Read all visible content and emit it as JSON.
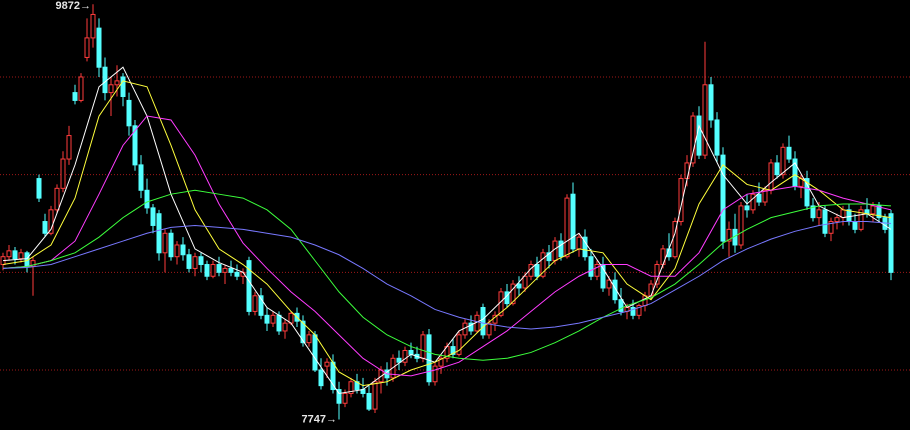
{
  "chart_data": {
    "type": "candlestick",
    "ylim": [
      7693,
      9894
    ],
    "yticks": [
      8000,
      8500,
      9000,
      9500
    ],
    "grid": true,
    "grid_color": "#a01818",
    "up_color": "#ff3c3c",
    "down_color": "#54ffff",
    "open": [
      8540,
      8580,
      8610,
      8570,
      8600,
      8530,
      8980,
      8760,
      8700,
      8820,
      8930,
      9080,
      9420,
      9380,
      9600,
      9700,
      9750,
      9550,
      9420,
      9460,
      9500,
      9380,
      9250,
      9050,
      8920,
      8830,
      8800,
      8600,
      8700,
      8580,
      8640,
      8590,
      8520,
      8580,
      8540,
      8480,
      8540,
      8500,
      8520,
      8500,
      8480,
      8560,
      8300,
      8380,
      8280,
      8240,
      8280,
      8200,
      8240,
      8290,
      8250,
      8140,
      8180,
      8000,
      8020,
      8040,
      7900,
      7830,
      7880,
      7940,
      7900,
      7880,
      7800,
      7940,
      8000,
      7960,
      8060,
      8040,
      8100,
      8080,
      8060,
      8180,
      7940,
      8020,
      8060,
      8120,
      8080,
      8180,
      8240,
      8200,
      8320,
      8180,
      8240,
      8280,
      8400,
      8340,
      8440,
      8420,
      8480,
      8540,
      8480,
      8600,
      8560,
      8660,
      8580,
      8900,
      8620,
      8680,
      8580,
      8480,
      8540,
      8420,
      8460,
      8360,
      8300,
      8320,
      8280,
      8330,
      8380,
      8440,
      8540,
      8620,
      8580,
      8760,
      8980,
      9060,
      9300,
      9100,
      9460,
      9280,
      9100,
      8660,
      8720,
      8640,
      8840,
      8820,
      8900,
      8860,
      8920,
      9060,
      9000,
      9140,
      9080,
      8940,
      8980,
      8840,
      8780,
      8820,
      8700,
      8760,
      8780,
      8820,
      8760,
      8720,
      8820,
      8800,
      8840,
      8780,
      8800
    ],
    "high": [
      8600,
      8640,
      8630,
      8620,
      8610,
      8580,
      9000,
      8800,
      8840,
      8950,
      9120,
      9250,
      9460,
      9520,
      9800,
      9872,
      9800,
      9600,
      9500,
      9560,
      9520,
      9420,
      9280,
      9100,
      8980,
      8850,
      8820,
      8720,
      8720,
      8660,
      8680,
      8620,
      8600,
      8600,
      8560,
      8560,
      8580,
      8540,
      8560,
      8540,
      8520,
      8580,
      8400,
      8420,
      8320,
      8300,
      8300,
      8260,
      8300,
      8320,
      8280,
      8200,
      8200,
      8060,
      8060,
      8080,
      7940,
      7900,
      7960,
      7980,
      7960,
      7920,
      7960,
      8020,
      8040,
      8080,
      8100,
      8120,
      8140,
      8120,
      8200,
      8210,
      8040,
      8080,
      8140,
      8160,
      8200,
      8260,
      8280,
      8300,
      8340,
      8260,
      8300,
      8420,
      8440,
      8460,
      8480,
      8500,
      8560,
      8580,
      8620,
      8640,
      8680,
      8700,
      8900,
      8960,
      8700,
      8720,
      8620,
      8560,
      8580,
      8480,
      8500,
      8420,
      8340,
      8360,
      8340,
      8400,
      8460,
      8560,
      8640,
      8700,
      8780,
      9000,
      9100,
      9320,
      9350,
      9680,
      9500,
      9320,
      9140,
      8760,
      8800,
      8860,
      8900,
      8920,
      8960,
      8940,
      9080,
      9100,
      9160,
      9200,
      9120,
      9000,
      9020,
      8880,
      8860,
      8840,
      8780,
      8800,
      8840,
      8850,
      8800,
      8840,
      8880,
      8860,
      8860,
      8800,
      8820
    ],
    "low": [
      8510,
      8560,
      8540,
      8550,
      8500,
      8380,
      8860,
      8680,
      8690,
      8800,
      8910,
      9050,
      9360,
      9370,
      9580,
      9650,
      9500,
      9380,
      9300,
      9400,
      9350,
      9200,
      9020,
      8880,
      8800,
      8700,
      8560,
      8500,
      8560,
      8540,
      8560,
      8500,
      8480,
      8500,
      8460,
      8470,
      8480,
      8440,
      8480,
      8460,
      8440,
      8280,
      8280,
      8260,
      8200,
      8220,
      8180,
      8160,
      8230,
      8220,
      8120,
      8120,
      7990,
      7900,
      7960,
      7880,
      7747,
      7810,
      7860,
      7880,
      7860,
      7790,
      7780,
      7880,
      7920,
      7940,
      8000,
      8020,
      8060,
      8040,
      8040,
      7920,
      7920,
      7980,
      8040,
      8060,
      8070,
      8160,
      8180,
      8190,
      8160,
      8160,
      8200,
      8270,
      8320,
      8330,
      8380,
      8400,
      8460,
      8460,
      8470,
      8520,
      8540,
      8560,
      8570,
      8600,
      8580,
      8560,
      8460,
      8460,
      8400,
      8380,
      8340,
      8280,
      8260,
      8260,
      8260,
      8300,
      8360,
      8420,
      8520,
      8560,
      8570,
      8740,
      8940,
      9040,
      9080,
      9080,
      9240,
      9060,
      8620,
      8580,
      8600,
      8620,
      8780,
      8800,
      8840,
      8840,
      8900,
      8980,
      8980,
      9060,
      8920,
      8880,
      8820,
      8760,
      8740,
      8680,
      8660,
      8720,
      8740,
      8740,
      8700,
      8710,
      8780,
      8760,
      8760,
      8700,
      8460
    ],
    "close": [
      8580,
      8610,
      8570,
      8600,
      8530,
      8560,
      8880,
      8700,
      8820,
      8930,
      9080,
      9200,
      9380,
      9500,
      9700,
      9820,
      9550,
      9420,
      9460,
      9480,
      9400,
      9250,
      9050,
      8920,
      8830,
      8740,
      8600,
      8700,
      8580,
      8640,
      8590,
      8520,
      8580,
      8540,
      8480,
      8540,
      8500,
      8520,
      8500,
      8480,
      8500,
      8300,
      8380,
      8280,
      8240,
      8280,
      8200,
      8240,
      8290,
      8250,
      8140,
      8180,
      8000,
      7920,
      8040,
      7900,
      7830,
      7880,
      7940,
      7900,
      7880,
      7800,
      7940,
      8000,
      7960,
      8060,
      8040,
      8100,
      8080,
      8060,
      8180,
      7940,
      8020,
      8060,
      8120,
      8080,
      8180,
      8240,
      8200,
      8280,
      8180,
      8240,
      8280,
      8400,
      8340,
      8440,
      8420,
      8480,
      8540,
      8480,
      8600,
      8560,
      8660,
      8580,
      8880,
      8620,
      8680,
      8580,
      8480,
      8540,
      8420,
      8460,
      8360,
      8300,
      8320,
      8280,
      8330,
      8380,
      8440,
      8540,
      8620,
      8580,
      8760,
      8980,
      9060,
      9300,
      9100,
      9460,
      9280,
      9100,
      8660,
      8720,
      8640,
      8840,
      8820,
      8900,
      8860,
      8920,
      9060,
      9000,
      9140,
      9080,
      8940,
      8980,
      8840,
      8780,
      8820,
      8700,
      8760,
      8780,
      8820,
      8760,
      8720,
      8820,
      8800,
      8840,
      8780,
      8720,
      8500
    ],
    "lines_x": [
      0,
      4,
      8,
      12,
      16,
      20,
      24,
      28,
      32,
      36,
      40,
      44,
      48,
      52,
      56,
      60,
      64,
      68,
      72,
      76,
      80,
      84,
      88,
      92,
      96,
      100,
      104,
      108,
      112,
      116,
      120,
      124,
      128,
      132,
      136,
      140,
      144,
      148
    ],
    "lines": [
      {
        "color": "#ffffff",
        "values": [
          8560,
          8570,
          8720,
          9050,
          9450,
          9550,
          9300,
          8900,
          8620,
          8550,
          8500,
          8320,
          8240,
          8060,
          7880,
          7900,
          7990,
          8080,
          8040,
          8200,
          8260,
          8380,
          8520,
          8620,
          8700,
          8520,
          8320,
          8380,
          8700,
          9250,
          9000,
          8850,
          8960,
          9060,
          8840,
          8780,
          8800,
          8720
        ]
      },
      {
        "color": "#ffff3c",
        "values": [
          8540,
          8560,
          8640,
          8880,
          9300,
          9480,
          9450,
          9150,
          8820,
          8620,
          8540,
          8440,
          8300,
          8180,
          7990,
          7920,
          7940,
          8000,
          8040,
          8100,
          8220,
          8320,
          8440,
          8560,
          8620,
          8600,
          8440,
          8360,
          8520,
          8850,
          9050,
          8950,
          8920,
          9000,
          8920,
          8820,
          8800,
          8780
        ]
      },
      {
        "color": "#ff3cff",
        "values": [
          8520,
          8530,
          8560,
          8660,
          8900,
          9150,
          9300,
          9280,
          9100,
          8850,
          8650,
          8520,
          8400,
          8300,
          8180,
          8060,
          7980,
          7970,
          8000,
          8040,
          8120,
          8200,
          8300,
          8400,
          8480,
          8540,
          8540,
          8480,
          8480,
          8600,
          8820,
          8900,
          8920,
          8940,
          8920,
          8880,
          8850,
          8820
        ]
      },
      {
        "color": "#3cff3c",
        "values": [
          8520,
          8530,
          8560,
          8600,
          8680,
          8780,
          8860,
          8900,
          8920,
          8900,
          8880,
          8820,
          8720,
          8560,
          8400,
          8270,
          8180,
          8120,
          8080,
          8060,
          8050,
          8060,
          8090,
          8140,
          8200,
          8270,
          8330,
          8370,
          8440,
          8540,
          8650,
          8720,
          8780,
          8810,
          8840,
          8850,
          8850,
          8840
        ]
      },
      {
        "color": "#7878ff",
        "values": [
          8520,
          8525,
          8540,
          8580,
          8620,
          8660,
          8700,
          8730,
          8740,
          8730,
          8720,
          8700,
          8680,
          8640,
          8590,
          8520,
          8440,
          8380,
          8310,
          8270,
          8240,
          8220,
          8210,
          8220,
          8240,
          8270,
          8300,
          8340,
          8410,
          8480,
          8560,
          8620,
          8670,
          8710,
          8740,
          8760,
          8760,
          8750
        ]
      }
    ],
    "annotations": [
      {
        "label": "9872→",
        "index": 15,
        "value": 9872
      },
      {
        "label": "7747→",
        "index": 56,
        "value": 7747
      }
    ]
  }
}
